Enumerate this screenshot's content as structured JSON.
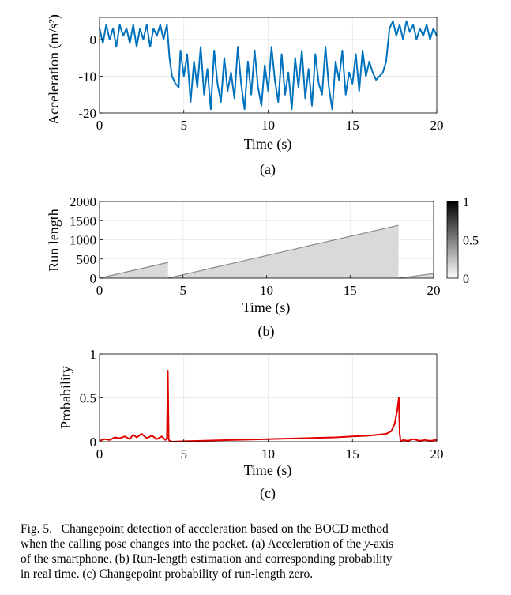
{
  "chart_data": [
    {
      "type": "line",
      "panel_label": "(a)",
      "xlabel": "Time (s)",
      "ylabel": "Acceleration (m/s²)",
      "xlim": [
        0,
        20
      ],
      "ylim": [
        -20,
        6
      ],
      "xticks": [
        "0",
        "5",
        "10",
        "15",
        "20"
      ],
      "yticks": [
        "0",
        "-10",
        "-20"
      ],
      "grid": true,
      "series": [
        {
          "color": "#0072BD",
          "x": [
            0,
            0.2,
            0.4,
            0.6,
            0.8,
            1.0,
            1.2,
            1.4,
            1.6,
            1.8,
            2.0,
            2.2,
            2.4,
            2.6,
            2.8,
            3.0,
            3.2,
            3.4,
            3.6,
            3.8,
            4.0,
            4.15,
            4.3,
            4.5,
            4.7,
            4.8,
            5.0,
            5.2,
            5.4,
            5.6,
            5.8,
            6.0,
            6.2,
            6.4,
            6.6,
            6.8,
            7.0,
            7.2,
            7.4,
            7.6,
            7.8,
            8.0,
            8.2,
            8.4,
            8.6,
            8.8,
            9.0,
            9.2,
            9.4,
            9.6,
            9.8,
            10.0,
            10.2,
            10.4,
            10.6,
            10.8,
            11.0,
            11.2,
            11.4,
            11.6,
            11.8,
            12.0,
            12.2,
            12.4,
            12.6,
            12.8,
            13.0,
            13.2,
            13.4,
            13.6,
            13.8,
            14.0,
            14.2,
            14.4,
            14.6,
            14.8,
            15.0,
            15.2,
            15.4,
            15.6,
            15.8,
            16.0,
            16.2,
            16.4,
            16.6,
            16.8,
            17.0,
            17.2,
            17.4,
            17.6,
            17.8,
            18.0,
            18.2,
            18.4,
            18.6,
            18.8,
            19.0,
            19.2,
            19.4,
            19.6,
            19.8,
            20.0
          ],
          "y": [
            3,
            -1,
            4,
            0,
            3,
            -2,
            4,
            1,
            3,
            -1,
            4,
            -2,
            3,
            0,
            4,
            -2,
            3,
            1,
            4,
            0,
            4,
            -5,
            -10,
            -12,
            -13,
            -3,
            -10,
            -4,
            -17,
            -6,
            -13,
            -2,
            -15,
            -8,
            -19,
            -3,
            -12,
            -17,
            -5,
            -14,
            -9,
            -16,
            -2,
            -12,
            -19,
            -6,
            -15,
            -3,
            -13,
            -18,
            -7,
            -14,
            -2,
            -11,
            -17,
            -4,
            -15,
            -9,
            -19,
            -5,
            -13,
            -3,
            -16,
            -8,
            -18,
            -4,
            -12,
            -15,
            -2,
            -13,
            -19,
            -6,
            -11,
            -3,
            -15,
            -9,
            -12,
            -4,
            -14,
            -3,
            -10,
            -6,
            -9,
            -11,
            -10,
            -9,
            -6,
            3,
            5,
            1,
            4,
            0,
            5,
            2,
            4,
            0,
            3,
            1,
            4,
            0,
            3,
            1
          ]
        }
      ]
    },
    {
      "type": "heatmap",
      "panel_label": "(b)",
      "xlabel": "Time (s)",
      "ylabel": "Run length",
      "xlim": [
        0,
        20
      ],
      "ylim": [
        0,
        2000
      ],
      "xticks": [
        "0",
        "5",
        "10",
        "15",
        "20"
      ],
      "yticks": [
        "0",
        "500",
        "1000",
        "1500",
        "2000"
      ],
      "colorbar_ticks": [
        "0",
        "0.5",
        "1"
      ],
      "colorbar_range": [
        0,
        1
      ],
      "colormap": "gray-reversed",
      "grid": true,
      "run_length_segments": [
        {
          "t_start": 0,
          "t_end": 4.1,
          "r_start": 0,
          "r_end": 410
        },
        {
          "t_start": 4.1,
          "t_end": 17.9,
          "r_start": 0,
          "r_end": 1380
        },
        {
          "t_start": 17.9,
          "t_end": 20,
          "r_start": 0,
          "r_end": 120
        }
      ]
    },
    {
      "type": "line",
      "panel_label": "(c)",
      "xlabel": "Time (s)",
      "ylabel": "Probability",
      "xlim": [
        0,
        20
      ],
      "ylim": [
        0,
        1
      ],
      "xticks": [
        "0",
        "5",
        "10",
        "15",
        "20"
      ],
      "yticks": [
        "0",
        "0.5",
        "1"
      ],
      "grid": true,
      "series": [
        {
          "color": "#E00000",
          "x": [
            0,
            0.3,
            0.6,
            0.9,
            1.2,
            1.5,
            1.8,
            2.0,
            2.2,
            2.5,
            2.8,
            3.1,
            3.4,
            3.7,
            3.9,
            4.0,
            4.05,
            4.1,
            4.15,
            4.3,
            5.0,
            6.0,
            7.0,
            8.0,
            9.0,
            10.0,
            11.0,
            12.0,
            13.0,
            14.0,
            15.0,
            16.0,
            16.5,
            17.0,
            17.3,
            17.5,
            17.65,
            17.75,
            17.8,
            17.85,
            17.9,
            18.0,
            18.3,
            18.6,
            19.0,
            19.3,
            19.6,
            20.0
          ],
          "y": [
            0.01,
            0.03,
            0.02,
            0.05,
            0.04,
            0.06,
            0.03,
            0.08,
            0.05,
            0.09,
            0.04,
            0.07,
            0.03,
            0.06,
            0.02,
            0.04,
            0.81,
            0.03,
            0.01,
            0.0,
            0.005,
            0.01,
            0.015,
            0.02,
            0.025,
            0.03,
            0.035,
            0.04,
            0.045,
            0.05,
            0.06,
            0.07,
            0.08,
            0.09,
            0.12,
            0.2,
            0.35,
            0.5,
            0.1,
            0.01,
            0.0,
            0.02,
            0.01,
            0.03,
            0.01,
            0.02,
            0.01,
            0.02
          ]
        }
      ]
    }
  ],
  "caption": {
    "lines": [
      {
        "pre": "Fig. 5.   Changepoint detection of acceleration based on the BOCD method",
        "italic": "",
        "post": ""
      },
      {
        "pre": "when the calling pose changes into the pocket. (a) Acceleration of the ",
        "italic": "y",
        "post": "-axis"
      },
      {
        "pre": "of the smartphone. (b) Run-length estimation and corresponding probability",
        "italic": "",
        "post": ""
      },
      {
        "pre": "in real time. (c) Changepoint probability of run-length zero.",
        "italic": "",
        "post": ""
      }
    ]
  }
}
